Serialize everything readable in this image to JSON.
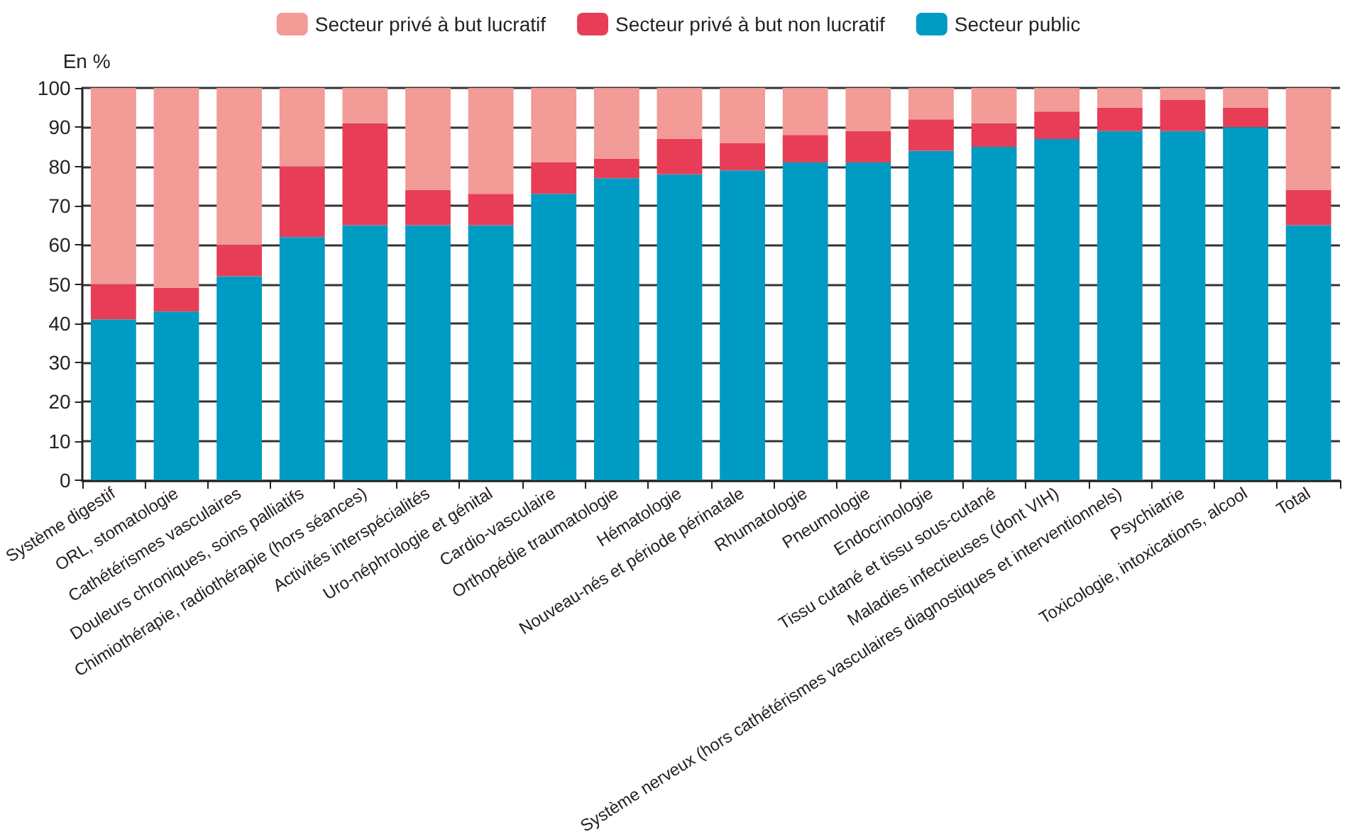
{
  "chart_data": {
    "type": "bar",
    "stacked": true,
    "ylabel": "En %",
    "categories": [
      "Système digestif",
      "ORL, stomatologie",
      "Cathétérismes vasculaires",
      "Douleurs chroniques, soins palliatifs",
      "Chimiothérapie, radiothérapie (hors séances)",
      "Activités interspécialités",
      "Uro-néphrologie et génital",
      "Cardio-vasculaire",
      "Orthopédie traumatologie",
      "Hématologie",
      "Nouveau-nés et période périnatale",
      "Rhumatologie",
      "Pneumologie",
      "Endocrinologie",
      "Tissu cutané et tissu sous-cutané",
      "Maladies infectieuses (dont VIH)",
      "Système nerveux (hors cathétérismes vasculaires diagnostiques et interventionnels)",
      "Psychiatrie",
      "Toxicologie, intoxications, alcool",
      "Total"
    ],
    "series": [
      {
        "name": "Secteur public",
        "color": "#009bc3",
        "values": [
          41,
          43,
          52,
          62,
          65,
          65,
          65,
          73,
          77,
          78,
          79,
          81,
          81,
          84,
          85,
          87,
          89,
          89,
          90,
          65
        ]
      },
      {
        "name": "Secteur privé à but non lucratif",
        "color": "#e83d56",
        "values": [
          9,
          6,
          8,
          18,
          26,
          9,
          8,
          8,
          5,
          9,
          7,
          7,
          8,
          8,
          6,
          7,
          6,
          8,
          5,
          9
        ]
      },
      {
        "name": "Secteur privé à but lucratif",
        "color": "#f29b97",
        "values": [
          50,
          51,
          40,
          20,
          9,
          26,
          27,
          19,
          18,
          13,
          14,
          12,
          11,
          8,
          9,
          6,
          5,
          3,
          5,
          26
        ]
      }
    ],
    "ylim": [
      0,
      100
    ],
    "yticks": [
      0,
      10,
      20,
      30,
      40,
      50,
      60,
      70,
      80,
      90,
      100
    ],
    "grid": "y",
    "legend": "top"
  }
}
